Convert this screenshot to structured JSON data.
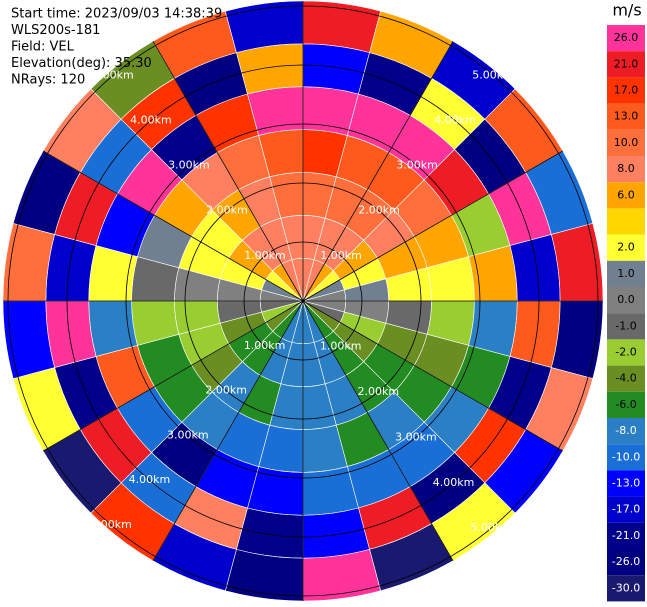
{
  "chart_data": {
    "type": "ppi",
    "header": [
      "Start time: 2023/09/03 14:38:39",
      "WLS200s-181",
      "Field: VEL",
      "Elevation(deg): 35.30",
      "NRays: 120"
    ],
    "unit": "m/s",
    "range_labels": [
      "1.00km",
      "2.00km",
      "3.00km",
      "4.00km",
      "5.00km"
    ],
    "values": [
      [
        8,
        8,
        10,
        17,
        26,
        -13,
        21
      ],
      [
        8,
        8,
        10,
        13,
        26,
        -21,
        6
      ],
      [
        6,
        8,
        10,
        13,
        26,
        2,
        -17
      ],
      [
        2,
        6,
        8,
        10,
        21,
        -26,
        13
      ],
      [
        1,
        2,
        6,
        6,
        -2,
        26,
        -10
      ],
      [
        0,
        1,
        2,
        2,
        6,
        -17,
        21
      ],
      [
        0,
        0,
        -1,
        -2,
        -8,
        13,
        -26
      ],
      [
        -1,
        -2,
        -4,
        -4,
        -6,
        -21,
        8
      ],
      [
        -4,
        -4,
        -6,
        -6,
        -8,
        17,
        -13
      ],
      [
        -6,
        -6,
        -6,
        -8,
        -10,
        -26,
        2
      ],
      [
        -8,
        -8,
        -8,
        -6,
        -10,
        21,
        -30
      ],
      [
        -8,
        -8,
        -8,
        -8,
        -10,
        -13,
        26
      ],
      [
        -8,
        -8,
        -8,
        -10,
        -13,
        -21,
        -26
      ],
      [
        -8,
        -8,
        -6,
        -10,
        -13,
        8,
        -17
      ],
      [
        -6,
        -6,
        -8,
        -8,
        -26,
        -10,
        17
      ],
      [
        -4,
        -6,
        -4,
        -6,
        -10,
        21,
        -30
      ],
      [
        -2,
        -4,
        -2,
        -6,
        13,
        -21,
        2
      ],
      [
        -1,
        -1,
        -2,
        -2,
        -8,
        26,
        -13
      ],
      [
        0,
        0,
        0,
        -1,
        2,
        -17,
        10
      ],
      [
        1,
        2,
        2,
        1,
        -13,
        21,
        -26
      ],
      [
        2,
        6,
        2,
        6,
        26,
        -10,
        8
      ],
      [
        6,
        8,
        6,
        8,
        -21,
        17,
        -4
      ],
      [
        8,
        8,
        8,
        10,
        17,
        -26,
        13
      ],
      [
        8,
        8,
        10,
        13,
        26,
        6,
        -17
      ]
    ],
    "colorbar": {
      "ticks": [
        {
          "value": 26,
          "label": "26.0"
        },
        {
          "value": 21,
          "label": "21.0"
        },
        {
          "value": 17,
          "label": "17.0"
        },
        {
          "value": 13,
          "label": "13.0"
        },
        {
          "value": 10,
          "label": "10.0"
        },
        {
          "value": 8,
          "label": "8.0"
        },
        {
          "value": 6,
          "label": "6.0"
        },
        null,
        {
          "value": 2,
          "label": "2.0"
        },
        {
          "value": 1,
          "label": "1.0"
        },
        {
          "value": 0,
          "label": "0.0"
        },
        {
          "value": -1,
          "label": "-1.0"
        },
        {
          "value": -2,
          "label": "-2.0"
        },
        {
          "value": -4,
          "label": "-4.0"
        },
        {
          "value": -6,
          "label": "-6.0"
        },
        {
          "value": -8,
          "label": "-8.0"
        },
        {
          "value": -10,
          "label": "-10.0"
        },
        {
          "value": -13,
          "label": "-13.0"
        },
        {
          "value": -17,
          "label": "-17.0"
        },
        {
          "value": -21,
          "label": "-21.0"
        },
        {
          "value": -26,
          "label": "-26.0"
        },
        {
          "value": -30,
          "label": "-30.0"
        }
      ],
      "colors": [
        "#ff3399",
        "#ee1c25",
        "#ff3300",
        "#ff5a1e",
        "#ff6f3c",
        "#ff8060",
        "#ffa500",
        "#ffd700",
        "#ffff33",
        "#708090",
        "#808080",
        "#696969",
        "#9acd32",
        "#6b8e23",
        "#228b22",
        "#2b7fc4",
        "#1a6fd6",
        "#0000ff",
        "#0000cd",
        "#00008b",
        "#000080",
        "#191970"
      ]
    }
  }
}
